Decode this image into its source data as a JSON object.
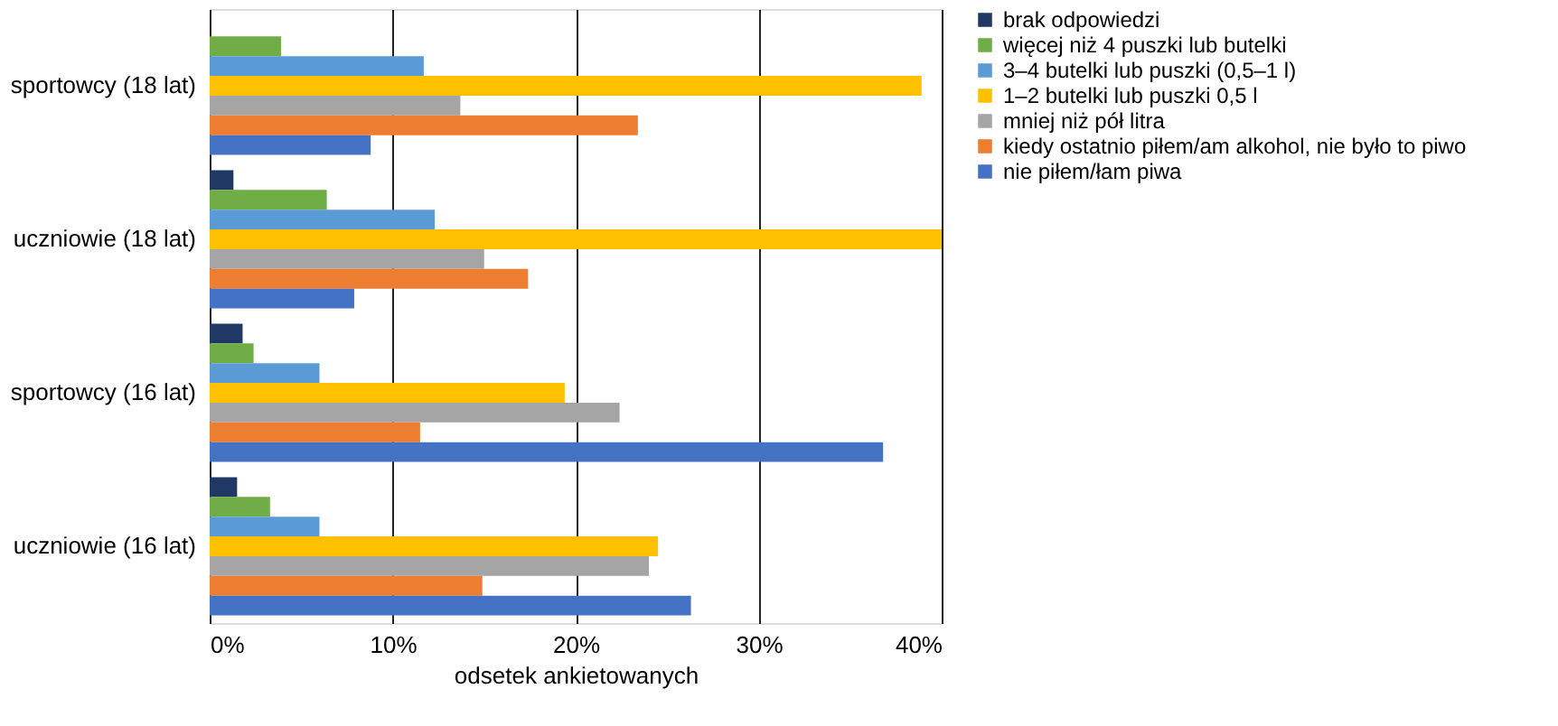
{
  "chart_data": {
    "type": "bar",
    "orientation": "horizontal",
    "xlabel": "odsetek ankietowanych",
    "categories": [
      "sportowcy (18 lat)",
      "uczniowie (18 lat)",
      "sportowcy (16 lat)",
      "uczniowie (16 lat)"
    ],
    "series": [
      {
        "name": "brak odpowiedzi",
        "color": "#203864",
        "values": [
          null,
          1.3,
          1.8,
          1.5
        ]
      },
      {
        "name": "więcej niż 4 puszki lub butelki",
        "color": "#70ad47",
        "values": [
          3.9,
          6.4,
          2.4,
          3.3
        ]
      },
      {
        "name": "3–4 butelki lub puszki (0,5–1 l)",
        "color": "#5b9bd5",
        "values": [
          11.7,
          12.3,
          6.0,
          6.0
        ]
      },
      {
        "name": "1–2 butelki lub puszki 0,5 l",
        "color": "#ffc000",
        "values": [
          38.9,
          40,
          19.4,
          24.5
        ]
      },
      {
        "name": "mniej niż pół litra",
        "color": "#a5a5a5",
        "values": [
          13.7,
          15.0,
          22.4,
          24.0
        ]
      },
      {
        "name": "kiedy ostatnio piłem/am alkohol, nie było to piwo",
        "color": "#ed7d31",
        "values": [
          23.4,
          17.4,
          11.5,
          14.9
        ]
      },
      {
        "name": "nie piłem/łam piwa",
        "color": "#4472c4",
        "values": [
          8.8,
          7.9,
          36.8,
          26.3
        ]
      }
    ],
    "xlim": [
      0,
      40
    ],
    "xticks": [
      {
        "value": 0,
        "label": "0%"
      },
      {
        "value": 10,
        "label": "10%"
      },
      {
        "value": 20,
        "label": "20%"
      },
      {
        "value": 30,
        "label": "30%"
      },
      {
        "value": 40,
        "label": "40%"
      }
    ],
    "grid": "x",
    "legend": "right"
  }
}
